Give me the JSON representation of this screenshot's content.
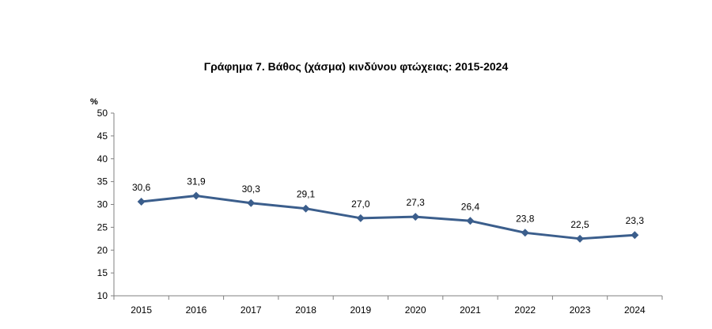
{
  "chart_data": {
    "type": "line",
    "title": "Γράφημα 7. Βάθος (χάσμα) κινδύνου φτώχειας: 2015-2024",
    "ylabel": "%",
    "xlabel": "",
    "categories": [
      "2015",
      "2016",
      "2017",
      "2018",
      "2019",
      "2020",
      "2021",
      "2022",
      "2023",
      "2024"
    ],
    "series": [
      {
        "name": "Βάθος (χάσμα) κινδύνου φτώχειας",
        "values": [
          30.6,
          31.9,
          30.3,
          29.1,
          27.0,
          27.3,
          26.4,
          23.8,
          22.5,
          23.3
        ],
        "data_labels": [
          "30,6",
          "31,9",
          "30,3",
          "29,1",
          "27,0",
          "27,3",
          "26,4",
          "23,8",
          "22,5",
          "23,3"
        ]
      }
    ],
    "ylim": [
      10,
      50
    ],
    "yticks": [
      "10",
      "15",
      "20",
      "25",
      "30",
      "35",
      "40",
      "45",
      "50"
    ],
    "grid": false,
    "legend": "none",
    "colors": {
      "line": "#3b5e8c",
      "marker": "#3b5e8c",
      "axis": "#808080"
    }
  }
}
